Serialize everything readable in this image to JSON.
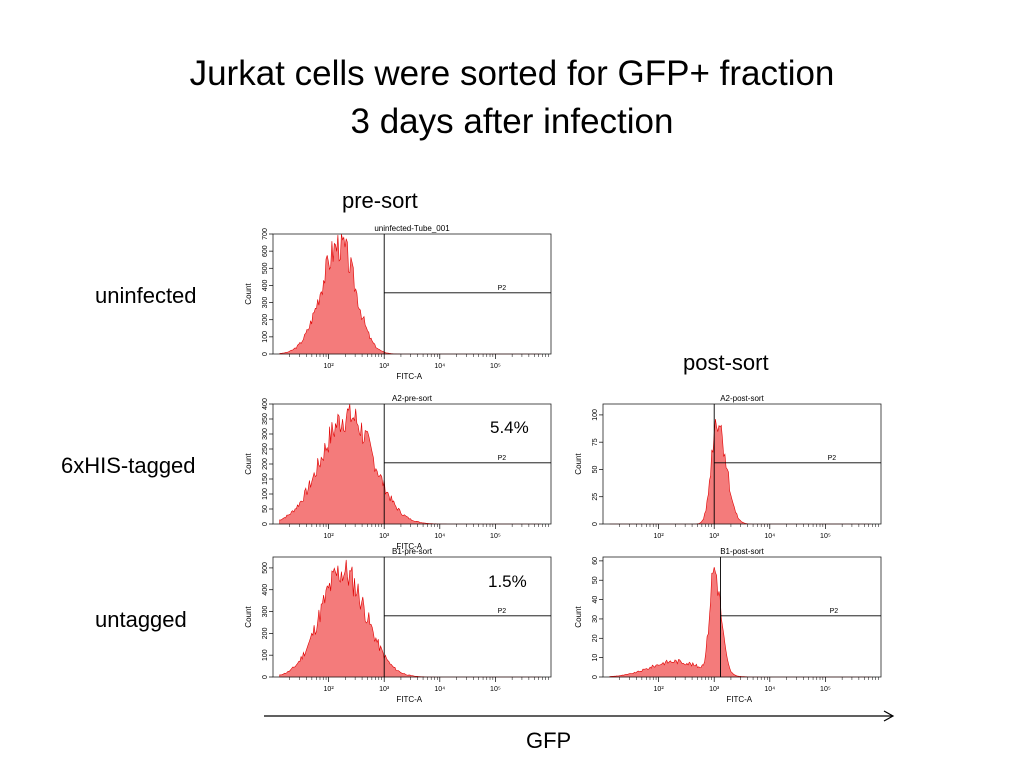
{
  "page": {
    "title_line1": "Jurkat cells were sorted for GFP+ fraction",
    "title_line2": "3 days after infection",
    "col_pre": "pre-sort",
    "col_post": "post-sort",
    "row_uninfected": "uninfected",
    "row_his": "6xHIS-tagged",
    "row_untagged": "untagged",
    "pct_his": "5.4%",
    "pct_untagged": "1.5%",
    "x_axis": "GFP"
  },
  "colors": {
    "fill": "#f47b7b",
    "stroke": "#e00000",
    "frame": "#222222"
  },
  "chart_data": [
    {
      "id": "uninfected-pre",
      "type": "area",
      "title": "uninfected-Tube_001",
      "xlabel": "FITC-A",
      "ylabel": "Count",
      "xscale": "log",
      "xlim": [
        10,
        1000000
      ],
      "xticks": [
        "10²",
        "10³",
        "10⁴",
        "10⁵"
      ],
      "yticks": [
        "0",
        "100",
        "200",
        "300",
        "400",
        "500",
        "600",
        "700"
      ],
      "ylim": [
        0,
        700
      ],
      "gate_label": "P2",
      "gate_x": 1000,
      "peak_log": 2.2,
      "sigma_left": 0.33,
      "sigma_right": 0.28,
      "peak_count": 690,
      "seed": 3
    },
    {
      "id": "his-pre",
      "type": "area",
      "title": "A2-pre-sort",
      "xlabel": "FITC-A",
      "ylabel": "Count",
      "xscale": "log",
      "xlim": [
        10,
        1000000
      ],
      "xticks": [
        "10²",
        "10³",
        "10⁴",
        "10⁵"
      ],
      "yticks": [
        "0",
        "50",
        "100",
        "150",
        "200",
        "250",
        "300",
        "350",
        "400"
      ],
      "ylim": [
        0,
        400
      ],
      "gate_label": "P2",
      "gate_x": 1000,
      "peak_log": 2.35,
      "sigma_left": 0.48,
      "sigma_right": 0.45,
      "peak_count": 390,
      "seed": 7
    },
    {
      "id": "untagged-pre",
      "type": "area",
      "title": "B1-pre-sort",
      "xlabel": "FITC-A",
      "ylabel": "Count",
      "xscale": "log",
      "xlim": [
        10,
        1000000
      ],
      "xticks": [
        "10²",
        "10³",
        "10⁴",
        "10⁵"
      ],
      "yticks": [
        "0",
        "100",
        "200",
        "300",
        "400",
        "500"
      ],
      "ylim": [
        0,
        550
      ],
      "gate_label": "P2",
      "gate_x": 1000,
      "peak_log": 2.25,
      "sigma_left": 0.4,
      "sigma_right": 0.42,
      "peak_count": 520,
      "seed": 11
    },
    {
      "id": "his-post",
      "type": "area",
      "title": "A2-post-sort",
      "xlabel": "",
      "ylabel": "Count",
      "xscale": "log",
      "xlim": [
        10,
        1000000
      ],
      "xticks": [
        "10²",
        "10³",
        "10⁴",
        "10⁵"
      ],
      "yticks": [
        "0",
        "25",
        "50",
        "75",
        "100"
      ],
      "ylim": [
        0,
        110
      ],
      "gate_label": "P2",
      "gate_x": 1000,
      "peak_log": 3.05,
      "sigma_left": 0.1,
      "sigma_right": 0.16,
      "peak_count": 105,
      "seed": 5
    },
    {
      "id": "untagged-post",
      "type": "area",
      "title": "B1-post-sort",
      "xlabel": "FITC-A",
      "ylabel": "Count",
      "xscale": "log",
      "xlim": [
        10,
        1000000
      ],
      "xticks": [
        "10²",
        "10³",
        "10⁴",
        "10⁵"
      ],
      "yticks": [
        "0",
        "10",
        "20",
        "30",
        "40",
        "50",
        "60"
      ],
      "ylim": [
        0,
        62
      ],
      "gate_label": "P2",
      "gate_x": 1300,
      "peak_log": 3.0,
      "sigma_left": 0.08,
      "sigma_right": 0.12,
      "peak_count": 58,
      "seed": 9,
      "shoulder": true
    }
  ]
}
